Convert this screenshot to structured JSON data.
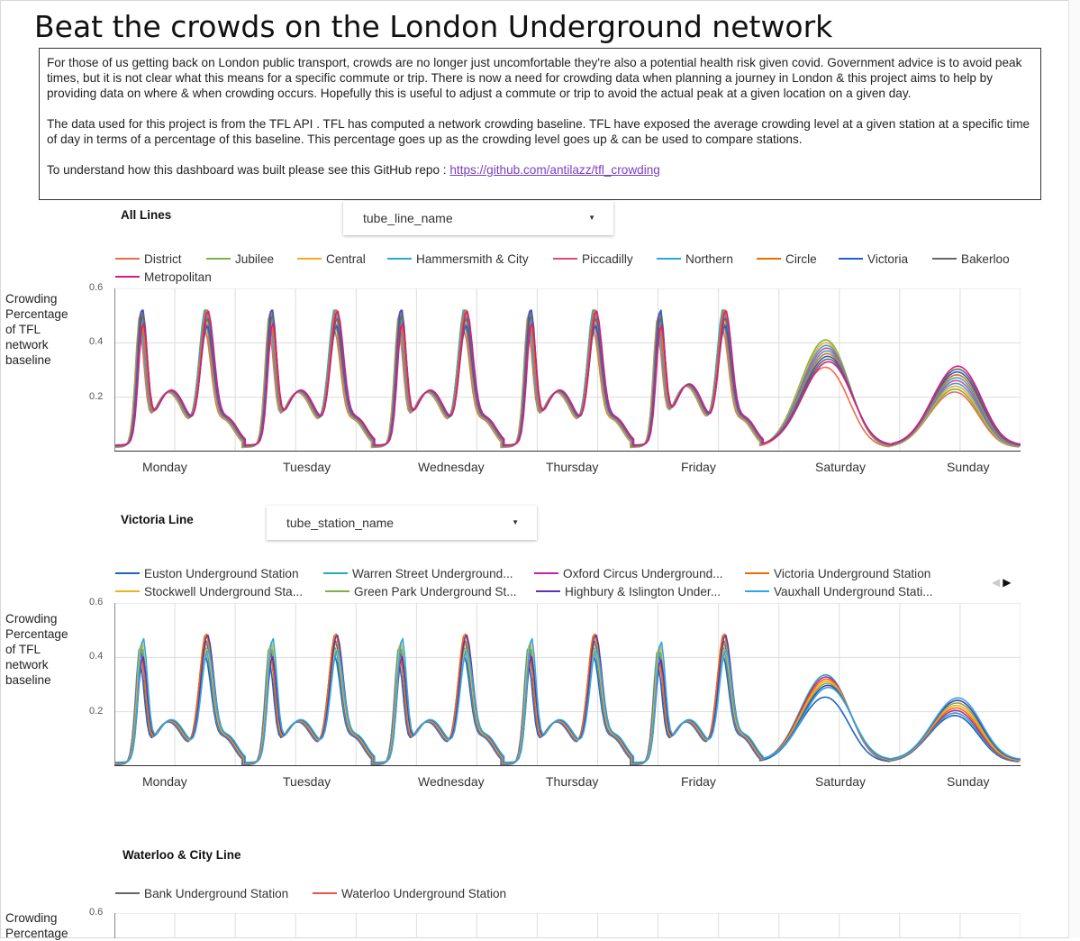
{
  "title": "Beat the crowds on the London Underground network",
  "intro": {
    "p1": "For those of us getting back on London public transport, crowds are no longer just uncomfortable they're also a potential health risk given covid. Government advice is to avoid peak times, but it is not clear what this means for a specific commute or trip. There is now a need for crowding data when planning a journey in London & this project aims to help by providing data on where & when crowding occurs. Hopefully this is useful to adjust a commute or trip to avoid the actual peak at a given location on a given day.",
    "p2": "The data used for this project is from the  TFL API . TFL has computed a network crowding baseline. TFL have exposed the average crowding level at a given station at a specific time of day in terms of a percentage of this baseline. This percentage goes up as the crowding level goes up & can be used to compare stations.",
    "p3_prefix": "To understand how this dashboard was built please see this GitHub repo : ",
    "p3_link": "https://github.com/antilazz/tfl_crowding"
  },
  "charts": {
    "all_lines": {
      "title": "All Lines",
      "dropdown": "tube_line_name",
      "ylabel": [
        "Crowding",
        "Percentage",
        "of TFL",
        "network",
        "baseline"
      ]
    },
    "victoria": {
      "title": "Victoria Line",
      "dropdown": "tube_station_name",
      "ylabel": [
        "Crowding",
        "Percentage",
        "of TFL",
        "network",
        "baseline"
      ],
      "pager": {
        "prev": "◀",
        "next": "▶"
      }
    },
    "waterloo": {
      "title": "Waterloo & City Line",
      "ylabel": [
        "Crowding",
        "Percentage"
      ]
    }
  },
  "chart_data": [
    {
      "type": "line",
      "title": "All Lines",
      "ylabel": "Crowding Percentage of TFL network baseline",
      "ylim": [
        0,
        0.6
      ],
      "yticks": [
        "0.6",
        "0.4",
        "0.2"
      ],
      "x_days": [
        "Monday",
        "Tuesday",
        "Wednesday",
        "Thursday",
        "Friday",
        "Saturday",
        "Sunday"
      ],
      "grid": true,
      "legend_position": "top",
      "series": [
        {
          "name": "District",
          "color": "#ef6c4a"
        },
        {
          "name": "Jubilee",
          "color": "#7cb342"
        },
        {
          "name": "Central",
          "color": "#f9a825"
        },
        {
          "name": "Hammersmith & City",
          "color": "#29a9d9"
        },
        {
          "name": "Piccadilly",
          "color": "#e2487a"
        },
        {
          "name": "Northern",
          "color": "#26aadf"
        },
        {
          "name": "Circle",
          "color": "#ef6c00"
        },
        {
          "name": "Victoria",
          "color": "#1e62c8"
        },
        {
          "name": "Bakerloo",
          "color": "#666666"
        },
        {
          "name": "Metropolitan",
          "color": "#d81b86"
        }
      ],
      "profile": {
        "weekday_peaks": {
          "am": 0.49,
          "pm": 0.49,
          "midday": 0.27,
          "night": 0.02
        },
        "friday": {
          "am": 0.49,
          "pm": 0.49,
          "midday": 0.3,
          "night": 0.02
        },
        "saturday_peak": 0.42,
        "sunday_peak": 0.31
      }
    },
    {
      "type": "line",
      "title": "Victoria Line",
      "ylabel": "Crowding Percentage of TFL network baseline",
      "ylim": [
        0,
        0.6
      ],
      "yticks": [
        "0.6",
        "0.4",
        "0.2"
      ],
      "x_days": [
        "Monday",
        "Tuesday",
        "Wednesday",
        "Thursday",
        "Friday",
        "Saturday",
        "Sunday"
      ],
      "grid": true,
      "legend_position": "top",
      "series": [
        {
          "name": "Euston Underground Station",
          "color": "#1e62c8"
        },
        {
          "name": "Warren Street Underground...",
          "color": "#26aab5"
        },
        {
          "name": "Oxford Circus Underground...",
          "color": "#c51fb0"
        },
        {
          "name": "Victoria Underground Station",
          "color": "#ef6c00"
        },
        {
          "name": "Stockwell Underground Sta...",
          "color": "#f2b21e"
        },
        {
          "name": "Green Park Underground St...",
          "color": "#7cb342"
        },
        {
          "name": "Highbury & Islington Under...",
          "color": "#5e35b1"
        },
        {
          "name": "Vauxhall Underground Stati...",
          "color": "#29a9e8"
        }
      ],
      "profile": {
        "weekday_peaks": {
          "am": 0.44,
          "pm": 0.46,
          "midday": 0.21,
          "night": 0.0
        },
        "saturday_peak": 0.34,
        "sunday_peak": 0.26
      }
    },
    {
      "type": "line",
      "title": "Waterloo & City Line",
      "ylabel": "Crowding Percentage",
      "yticks": [
        "0.6"
      ],
      "legend_position": "top",
      "series": [
        {
          "name": "Bank Underground Station",
          "color": "#666666"
        },
        {
          "name": "Waterloo Underground Station",
          "color": "#ef5350"
        }
      ]
    }
  ]
}
